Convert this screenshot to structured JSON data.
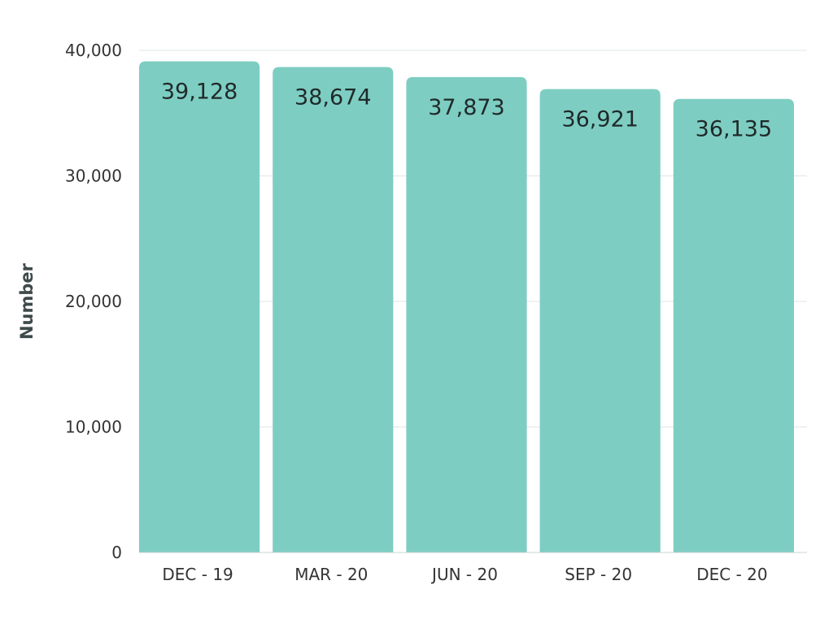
{
  "chart_data": {
    "type": "bar",
    "title": "",
    "xlabel": "",
    "ylabel": "Number",
    "categories": [
      "DEC - 19",
      "MAR - 20",
      "JUN - 20",
      "SEP - 20",
      "DEC - 20"
    ],
    "values": [
      39128,
      38674,
      37873,
      36921,
      36135
    ],
    "value_labels": [
      "39,128",
      "38,674",
      "37,873",
      "36,921",
      "36,135"
    ],
    "ylim": [
      0,
      40000
    ],
    "y_ticks": [
      0,
      10000,
      20000,
      30000,
      40000
    ],
    "y_tick_labels": [
      "0",
      "10,000",
      "20,000",
      "30,000",
      "40,000"
    ],
    "grid": true,
    "legend": "none",
    "colors": {
      "bar": "#7ecdc2",
      "grid": "#dde6e6",
      "axis": "#c9d4d4",
      "text": "#333333",
      "value_text": "#1f2a2a",
      "axis_title": "#3f4a4a"
    }
  }
}
